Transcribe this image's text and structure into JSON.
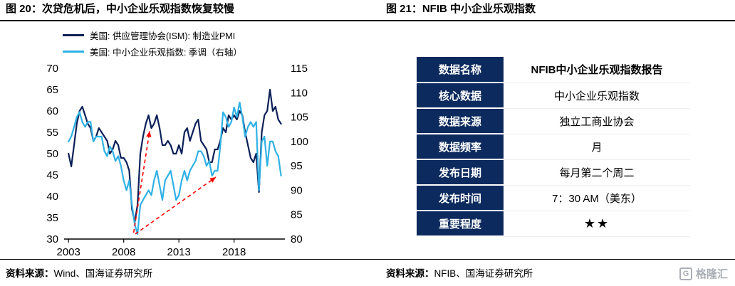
{
  "header": {
    "left_title": "图 20：次贷危机后，中小企业乐观指数恢复较慢",
    "right_title": "图 21：NFIB 中小企业乐观指数"
  },
  "left_panel": {
    "source_prefix": "资料来源：",
    "source_body": "Wind、国海证券研究所"
  },
  "right_panel": {
    "source_prefix": "资料来源：",
    "source_body": "NFIB、国海证券研究所",
    "table_header_bg": "#0c2a5e",
    "table": [
      {
        "label": "数据名称",
        "value": "NFIB中小企业乐观指数报告"
      },
      {
        "label": "核心数据",
        "value": "中小企业乐观指数"
      },
      {
        "label": "数据来源",
        "value": "独立工商业协会"
      },
      {
        "label": "数据频率",
        "value": "月"
      },
      {
        "label": "发布日期",
        "value": "每月第二个周二"
      },
      {
        "label": "发布时间",
        "value": "7：30 AM（美东）"
      },
      {
        "label": "重要程度",
        "value": "★★"
      }
    ]
  },
  "watermark": {
    "icon_letter": "G",
    "text": "格隆汇"
  },
  "chart_data": {
    "type": "line",
    "title": "",
    "xlabel": "",
    "ylabel_left": "",
    "ylabel_right": "",
    "grid": false,
    "legend_position": "top-left",
    "x_range": [
      2002.6,
      2022.6
    ],
    "x_ticks": [
      2003,
      2008,
      2013,
      2018
    ],
    "left_axis": {
      "min": 30,
      "max": 70,
      "ticks": [
        70,
        65,
        60,
        55,
        50,
        45,
        40,
        35,
        30
      ]
    },
    "right_axis": {
      "min": 80,
      "max": 115,
      "ticks": [
        115,
        110,
        105,
        100,
        95,
        90,
        85,
        80
      ]
    },
    "axis_color": "#000000",
    "series": [
      {
        "name": "美国: 供应管理协会(ISM): 制造业PMI",
        "axis": "left",
        "color": "#0b2058",
        "x_start": 2003,
        "x_step": 0.25,
        "values": [
          50,
          47,
          52,
          57,
          60,
          61,
          59,
          57,
          56,
          53,
          54,
          56,
          55,
          54,
          53,
          50,
          51,
          53,
          52,
          49,
          49,
          48,
          46,
          37,
          34,
          38,
          50,
          54,
          57,
          59,
          56,
          57,
          59,
          56,
          52,
          52,
          53,
          52,
          50,
          50,
          52,
          50,
          55,
          56,
          53,
          55,
          57,
          58,
          53,
          52,
          51,
          48,
          48,
          51,
          51,
          53,
          56,
          55,
          59,
          58,
          59,
          58,
          60,
          59,
          55,
          52,
          49,
          48,
          50,
          41,
          55,
          59,
          60,
          65,
          60,
          61,
          58,
          57
        ]
      },
      {
        "name": "美国: 中小企业乐观指数: 季调（右轴）",
        "axis": "right",
        "color": "#2fb1e5",
        "x_start": 2003,
        "x_step": 0.25,
        "values": [
          100,
          101,
          103,
          105,
          106,
          104,
          103,
          104,
          104,
          100,
          101,
          101,
          101,
          98,
          97,
          99,
          98,
          96,
          97,
          95,
          92,
          90,
          92,
          87,
          83,
          81,
          87,
          88,
          89,
          90,
          89,
          92,
          94,
          91,
          88,
          92,
          93,
          94,
          91,
          88,
          89,
          92,
          94,
          92,
          94,
          95,
          96,
          98,
          98,
          97,
          95,
          96,
          93,
          94,
          94,
          99,
          106,
          105,
          103,
          104,
          107,
          105,
          108,
          105,
          101,
          103,
          104,
          103,
          104,
          90,
          100,
          101,
          95,
          100,
          100,
          98,
          97,
          93
        ]
      }
    ],
    "annotations": [
      {
        "type": "arrow",
        "color": "#ff0000",
        "axis": "left",
        "from": [
          2008.9,
          31.5
        ],
        "to": [
          2010.35,
          55.3
        ]
      },
      {
        "type": "arrow",
        "color": "#ff0000",
        "axis": "left",
        "from": [
          2009.05,
          31.2
        ],
        "to": [
          2016.35,
          44.5
        ]
      }
    ]
  }
}
